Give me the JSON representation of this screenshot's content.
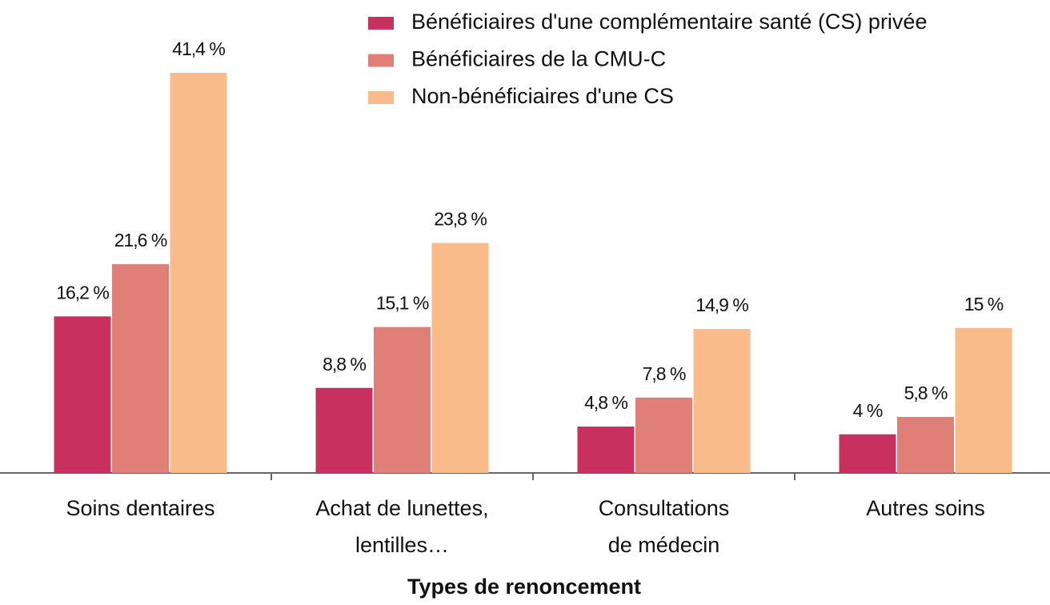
{
  "chart_data": {
    "type": "bar",
    "x_label": "Types de renoncement",
    "categories": [
      "Soins dentaires",
      "Achat de lunettes,\nlentilles…",
      "Consultations\nde médecin",
      "Autres soins"
    ],
    "series": [
      {
        "name": "Bénéficiaires d'une complémentaire santé (CS) privée",
        "color": "#c8305f",
        "values": [
          16.2,
          8.8,
          4.8,
          4
        ],
        "value_labels": [
          "16,2 %",
          "8,8 %",
          "4,8 %",
          "4 %"
        ]
      },
      {
        "name": "Bénéficiaires de la CMU-C",
        "color": "#e07f78",
        "values": [
          21.6,
          15.1,
          7.8,
          5.8
        ],
        "value_labels": [
          "21,6 %",
          "15,1 %",
          "7,8 %",
          "5,8 %"
        ]
      },
      {
        "name": "Non-bénéficiaires d'une CS",
        "color": "#f9bb8a",
        "values": [
          41.4,
          23.8,
          14.9,
          15
        ],
        "value_labels": [
          "41,4 %",
          "23,8 %",
          "14,9 %",
          "15 %"
        ]
      }
    ]
  }
}
